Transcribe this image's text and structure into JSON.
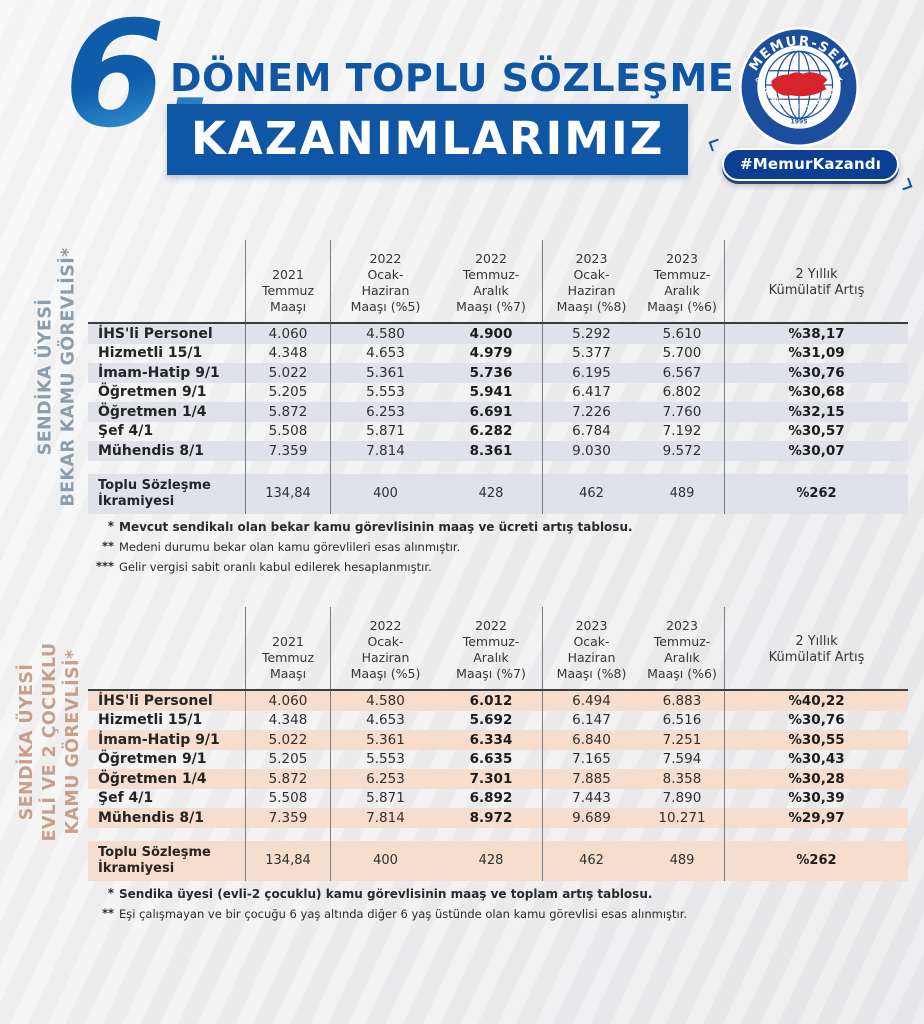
{
  "header": {
    "period_number": "6.",
    "title_line1": "DÖNEM TOPLU SÖZLEŞME",
    "title_line2": "KAZANIMLARIMIZ",
    "hashtag": "#MemurKazandı",
    "logo": {
      "top_text": "MEMUR-SEN",
      "bottom_text": "MEMUR SENDİKALARI KONFEDERASYONU",
      "year": "1995"
    }
  },
  "colors": {
    "accent_blue": "#0f56a4",
    "logo_blue": "#1b4f9e",
    "turkey_red": "#d8232a",
    "pill_blue": "#0c3f93",
    "stripe_gray": "#dfe3e9",
    "stripe_beige": "#f6ddcd",
    "label_slate": "#8e9dab",
    "label_tan": "#c7a08b"
  },
  "columns": [
    [
      "2021",
      "Temmuz",
      "Maaşı"
    ],
    [
      "2022",
      "Ocak-",
      "Haziran",
      "Maaşı (%5)"
    ],
    [
      "2022",
      "Temmuz-",
      "Aralık",
      "Maaşı (%7)"
    ],
    [
      "2023",
      "Ocak-",
      "Haziran",
      "Maaşı (%8)"
    ],
    [
      "2023",
      "Temmuz-",
      "Aralık",
      "Maaşı (%6)"
    ],
    [
      "2 Yıllık",
      "Kümülatif Artış"
    ]
  ],
  "tables": [
    {
      "side_label_lines": [
        "SENDİKA ÜYESİ",
        "BEKAR KAMU GÖREVLİSİ*"
      ],
      "label_color": "#8e9dab",
      "stripe_color": "#dfe3e9",
      "rows": [
        {
          "label": "İHS'li Personel",
          "values": [
            "4.060",
            "4.580",
            "4.900",
            "5.292",
            "5.610"
          ],
          "cumulative": "%38,17"
        },
        {
          "label": "Hizmetli 15/1",
          "values": [
            "4.348",
            "4.653",
            "4.979",
            "5.377",
            "5.700"
          ],
          "cumulative": "%31,09"
        },
        {
          "label": "İmam-Hatip 9/1",
          "values": [
            "5.022",
            "5.361",
            "5.736",
            "6.195",
            "6.567"
          ],
          "cumulative": "%30,76"
        },
        {
          "label": "Öğretmen 9/1",
          "values": [
            "5.205",
            "5.553",
            "5.941",
            "6.417",
            "6.802"
          ],
          "cumulative": "%30,68"
        },
        {
          "label": "Öğretmen 1/4",
          "values": [
            "5.872",
            "6.253",
            "6.691",
            "7.226",
            "7.760"
          ],
          "cumulative": "%32,15"
        },
        {
          "label": "Şef 4/1",
          "values": [
            "5.508",
            "5.871",
            "6.282",
            "6.784",
            "7.192"
          ],
          "cumulative": "%30,57"
        },
        {
          "label": "Mühendis 8/1",
          "values": [
            "7.359",
            "7.814",
            "8.361",
            "9.030",
            "9.572"
          ],
          "cumulative": "%30,07"
        }
      ],
      "bonus_row": {
        "label_lines": [
          "Toplu Sözleşme",
          "İkramiyesi"
        ],
        "values": [
          "134,84",
          "400",
          "428",
          "462",
          "489"
        ],
        "cumulative": "%262"
      },
      "footnotes": [
        {
          "stars": "*",
          "text": "Mevcut sendikalı olan bekar kamu görevlisinin maaş ve ücreti artış tablosu.",
          "bold": true
        },
        {
          "stars": "**",
          "text": "Medeni durumu bekar olan kamu görevlileri esas alınmıştır.",
          "bold": false
        },
        {
          "stars": "***",
          "text": "Gelir vergisi sabit oranlı kabul edilerek hesaplanmıştır.",
          "bold": false
        }
      ]
    },
    {
      "side_label_lines": [
        "SENDİKA ÜYESİ",
        "EVLİ VE 2 ÇOCUKLU",
        "KAMU GÖREVLİSİ*"
      ],
      "label_color": "#c7a08b",
      "stripe_color": "#f6ddcd",
      "rows": [
        {
          "label": "İHS'li Personel",
          "values": [
            "4.060",
            "4.580",
            "6.012",
            "6.494",
            "6.883"
          ],
          "cumulative": "%40,22"
        },
        {
          "label": "Hizmetli 15/1",
          "values": [
            "4.348",
            "4.653",
            "5.692",
            "6.147",
            "6.516"
          ],
          "cumulative": "%30,76"
        },
        {
          "label": "İmam-Hatip 9/1",
          "values": [
            "5.022",
            "5.361",
            "6.334",
            "6.840",
            "7.251"
          ],
          "cumulative": "%30,55"
        },
        {
          "label": "Öğretmen 9/1",
          "values": [
            "5.205",
            "5.553",
            "6.635",
            "7.165",
            "7.594"
          ],
          "cumulative": "%30,43"
        },
        {
          "label": "Öğretmen 1/4",
          "values": [
            "5.872",
            "6.253",
            "7.301",
            "7.885",
            "8.358"
          ],
          "cumulative": "%30,28"
        },
        {
          "label": "Şef 4/1",
          "values": [
            "5.508",
            "5.871",
            "6.892",
            "7.443",
            "7.890"
          ],
          "cumulative": "%30,39"
        },
        {
          "label": "Mühendis 8/1",
          "values": [
            "7.359",
            "7.814",
            "8.972",
            "9.689",
            "10.271"
          ],
          "cumulative": "%29,97"
        }
      ],
      "bonus_row": {
        "label_lines": [
          "Toplu Sözleşme",
          "İkramiyesi"
        ],
        "values": [
          "134,84",
          "400",
          "428",
          "462",
          "489"
        ],
        "cumulative": "%262"
      },
      "footnotes": [
        {
          "stars": "*",
          "text": "Sendika üyesi (evli-2 çocuklu) kamu görevlisinin maaş ve toplam artış tablosu.",
          "bold": true
        },
        {
          "stars": "**",
          "text": "Eşi çalışmayan ve bir çocuğu 6 yaş altında diğer 6 yaş üstünde olan kamu görevlisi esas alınmıştır.",
          "bold": false
        }
      ]
    }
  ]
}
